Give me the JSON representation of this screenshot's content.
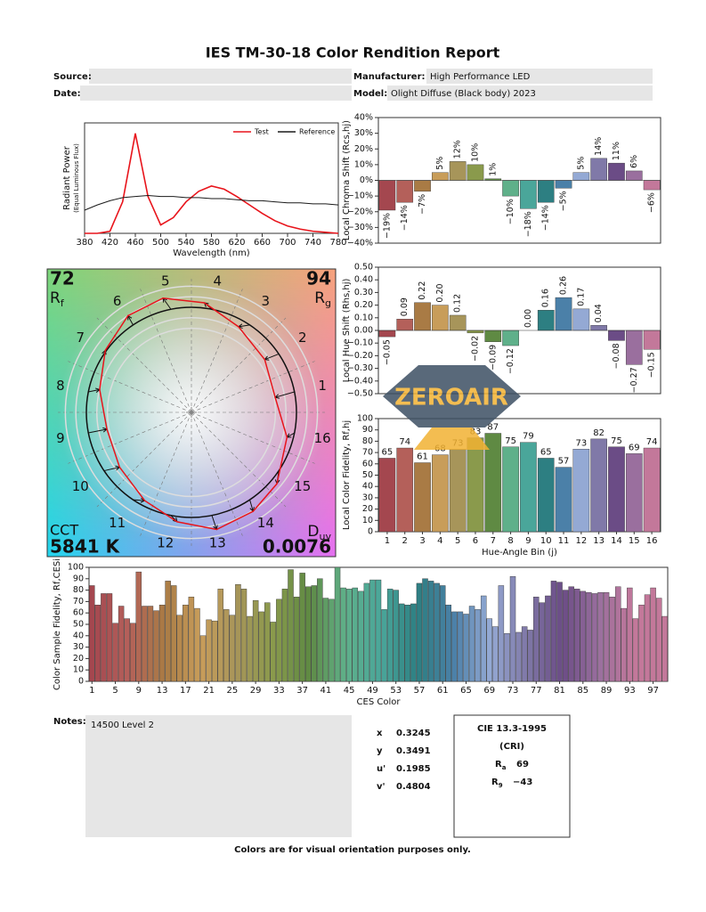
{
  "title": "IES TM-30-18 Color Rendition Report",
  "header": {
    "source_label": "Source:",
    "source": "",
    "date_label": "Date:",
    "date": "",
    "manufacturer_label": "Manufacturer:",
    "manufacturer": "High Performance LED",
    "model_label": "Model:",
    "model": "Olight Diffuse (Black body) 2023"
  },
  "chart_data": [
    {
      "type": "line",
      "xlabel": "Wavelength (nm)",
      "ylabel": "Radiant Power",
      "ylabel_sub": "(Equal Luminous Flux)",
      "x": [
        380,
        400,
        420,
        440,
        460,
        480,
        500,
        520,
        540,
        560,
        580,
        600,
        620,
        640,
        660,
        680,
        700,
        720,
        740,
        760,
        780
      ],
      "xlim": [
        380,
        780
      ],
      "xticks": [
        380,
        420,
        460,
        500,
        540,
        580,
        620,
        660,
        700,
        740,
        780
      ],
      "ylim": [
        0,
        1.05
      ],
      "legend": "upper right",
      "series": [
        {
          "name": "Test",
          "color": "#e8141b",
          "values": [
            0,
            0,
            0.02,
            0.3,
            0.95,
            0.35,
            0.08,
            0.15,
            0.3,
            0.4,
            0.45,
            0.42,
            0.35,
            0.27,
            0.19,
            0.12,
            0.07,
            0.04,
            0.02,
            0.01,
            0
          ]
        },
        {
          "name": "Reference",
          "color": "#1a1a1a",
          "values": [
            0.22,
            0.27,
            0.31,
            0.34,
            0.35,
            0.36,
            0.35,
            0.35,
            0.34,
            0.34,
            0.33,
            0.33,
            0.32,
            0.31,
            0.31,
            0.3,
            0.29,
            0.29,
            0.28,
            0.28,
            0.27
          ]
        }
      ]
    },
    {
      "type": "bar",
      "ylabel": "Local Chroma Shift (Rcs,hj)",
      "values": [
        -19,
        -14,
        -7,
        5,
        12,
        10,
        1,
        -10,
        -18,
        -14,
        -5,
        5,
        14,
        11,
        6,
        -6
      ],
      "value_labels": [
        "−19%",
        "−14%",
        "−7%",
        "5%",
        "12%",
        "10%",
        "1%",
        "−10%",
        "−18%",
        "−14%",
        "−5%",
        "5%",
        "14%",
        "11%",
        "6%",
        "−6%"
      ],
      "colors": [
        "#a4474f",
        "#b4605a",
        "#a97b45",
        "#c89d5a",
        "#a7955a",
        "#8a9a4c",
        "#5f8a43",
        "#5fb08a",
        "#4aa69a",
        "#2d7f82",
        "#4b80a8",
        "#94a9d4",
        "#8079a8",
        "#6b4c86",
        "#9a6f9e",
        "#c3789a"
      ],
      "ylim": [
        -40,
        40
      ],
      "yticks": [
        {
          "value": -40,
          "label": "−40%"
        },
        {
          "value": -30,
          "label": "−30%"
        },
        {
          "value": -20,
          "label": "−20%"
        },
        {
          "value": -10,
          "label": "−10%"
        },
        {
          "value": 0,
          "label": "0%"
        },
        {
          "value": 10,
          "label": "10%"
        },
        {
          "value": 20,
          "label": "20%"
        },
        {
          "value": 30,
          "label": "30%"
        },
        {
          "value": 40,
          "label": "40%"
        }
      ]
    },
    {
      "type": "bar",
      "ylabel": "Local Hue Shift (Rhs,hj)",
      "values": [
        -0.05,
        0.09,
        0.22,
        0.2,
        0.12,
        -0.02,
        -0.09,
        -0.12,
        0,
        0.16,
        0.26,
        0.17,
        0.04,
        -0.08,
        -0.27,
        -0.15
      ],
      "value_labels": [
        "−0.05",
        "0.09",
        "0.22",
        "0.20",
        "0.12",
        "−0.02",
        "−0.09",
        "−0.12",
        "0.00",
        "0.16",
        "0.26",
        "0.17",
        "0.04",
        "−0.08",
        "−0.27",
        "−0.15"
      ],
      "colors": [
        "#a4474f",
        "#b4605a",
        "#a97b45",
        "#c89d5a",
        "#a7955a",
        "#8a9a4c",
        "#5f8a43",
        "#5fb08a",
        "#4aa69a",
        "#2d7f82",
        "#4b80a8",
        "#94a9d4",
        "#8079a8",
        "#6b4c86",
        "#9a6f9e",
        "#c3789a"
      ],
      "ylim": [
        -0.5,
        0.5
      ],
      "yticks": [
        {
          "value": -0.5,
          "label": "−0.50"
        },
        {
          "value": -0.4,
          "label": "−0.40"
        },
        {
          "value": -0.3,
          "label": "−0.30"
        },
        {
          "value": -0.2,
          "label": "−0.20"
        },
        {
          "value": -0.1,
          "label": "−0.10"
        },
        {
          "value": 0,
          "label": "0.00"
        },
        {
          "value": 0.1,
          "label": "0.10"
        },
        {
          "value": 0.2,
          "label": "0.20"
        },
        {
          "value": 0.3,
          "label": "0.30"
        },
        {
          "value": 0.4,
          "label": "0.40"
        },
        {
          "value": 0.5,
          "label": "0.50"
        }
      ]
    },
    {
      "type": "bar",
      "ylabel": "Local Color Fidelity, Rf,hj",
      "xlabel": "Hue-Angle Bin (j)",
      "categories": [
        "1",
        "2",
        "3",
        "4",
        "5",
        "6",
        "7",
        "8",
        "9",
        "10",
        "11",
        "12",
        "13",
        "14",
        "15",
        "16"
      ],
      "values": [
        65,
        74,
        61,
        68,
        73,
        83,
        87,
        75,
        79,
        65,
        57,
        73,
        82,
        75,
        69,
        74
      ],
      "colors": [
        "#a4474f",
        "#b4605a",
        "#a97b45",
        "#c89d5a",
        "#a7955a",
        "#8a9a4c",
        "#5f8a43",
        "#5fb08a",
        "#4aa69a",
        "#2d7f82",
        "#4b80a8",
        "#94a9d4",
        "#8079a8",
        "#6b4c86",
        "#9a6f9e",
        "#c3789a"
      ],
      "ylim": [
        0,
        100
      ],
      "yticks": [
        0,
        10,
        20,
        30,
        40,
        50,
        60,
        70,
        80,
        90,
        100
      ]
    },
    {
      "type": "vector",
      "rf": 72,
      "rf_label": {
        "main": "R",
        "sub": "f"
      },
      "rg": 94,
      "rg_label": {
        "main": "R",
        "sub": "g"
      },
      "cct_label": "CCT",
      "cct": {
        "value": 5841,
        "label": "5841 K"
      },
      "duv_label": {
        "main": "D",
        "sub": "uv"
      },
      "duv": 0.0076,
      "bins": [
        "1",
        "2",
        "3",
        "4",
        "5",
        "6",
        "7",
        "8",
        "9",
        "10",
        "11",
        "12",
        "13",
        "14",
        "15",
        "16"
      ]
    },
    {
      "type": "bar",
      "xlabel": "CES Color",
      "ylabel": "Color Sample Fidelity, Rf,CESi",
      "categories": [
        "1",
        null,
        null,
        null,
        "5",
        null,
        null,
        null,
        "9",
        null,
        null,
        null,
        "13",
        null,
        null,
        null,
        "17",
        null,
        null,
        null,
        "21",
        null,
        null,
        null,
        "25",
        null,
        null,
        null,
        "29",
        null,
        null,
        null,
        "33",
        null,
        null,
        null,
        "37",
        null,
        null,
        null,
        "41",
        null,
        null,
        null,
        "45",
        null,
        null,
        null,
        "49",
        null,
        null,
        null,
        "53",
        null,
        null,
        null,
        "57",
        null,
        null,
        null,
        "61",
        null,
        null,
        null,
        "65",
        null,
        null,
        null,
        "69",
        null,
        null,
        null,
        "73",
        null,
        null,
        null,
        "77",
        null,
        null,
        null,
        "81",
        null,
        null,
        null,
        "85",
        null,
        null,
        null,
        "89",
        null,
        null,
        null,
        "93",
        null,
        null,
        null,
        "97",
        null,
        null
      ],
      "values": [
        84,
        67,
        77,
        77,
        51,
        66,
        55,
        51,
        96,
        66,
        66,
        62,
        67,
        88,
        84,
        58,
        67,
        74,
        64,
        40,
        54,
        53,
        81,
        63,
        58,
        85,
        81,
        57,
        71,
        61,
        69,
        52,
        72,
        81,
        98,
        74,
        95,
        83,
        84,
        90,
        73,
        72,
        100,
        82,
        81,
        82,
        79,
        86,
        89,
        89,
        63,
        81,
        80,
        68,
        67,
        68,
        86,
        90,
        88,
        86,
        84,
        67,
        61,
        61,
        59,
        66,
        63,
        75,
        55,
        48,
        84,
        42,
        92,
        43,
        48,
        45,
        74,
        69,
        75,
        88,
        87,
        80,
        83,
        81,
        79,
        78,
        77,
        78,
        78,
        74,
        83,
        64,
        82,
        55,
        67,
        76,
        82,
        73,
        57
      ],
      "ylim": [
        0,
        100
      ],
      "yticks": [
        0,
        10,
        20,
        30,
        40,
        50,
        60,
        70,
        80,
        90,
        100
      ]
    }
  ],
  "watermark": "ZEROAIR",
  "notes": {
    "label": "Notes:",
    "text": "14500 Level 2"
  },
  "chromaticity": [
    {
      "label": "x",
      "value": "0.3245"
    },
    {
      "label": "y",
      "value": "0.3491"
    },
    {
      "label": "u'",
      "value": "0.1985"
    },
    {
      "label": "v'",
      "value": "0.4804"
    }
  ],
  "cri": {
    "title": "CIE 13.3-1995",
    "subtitle": "(CRI)",
    "ra_label": {
      "main": "R",
      "sub": "a"
    },
    "ra": 69,
    "r9_label": {
      "main": "R",
      "sub": "9"
    },
    "r9": {
      "value": -43,
      "label": "−43"
    }
  },
  "footer": "Colors are for visual orientation purposes only."
}
